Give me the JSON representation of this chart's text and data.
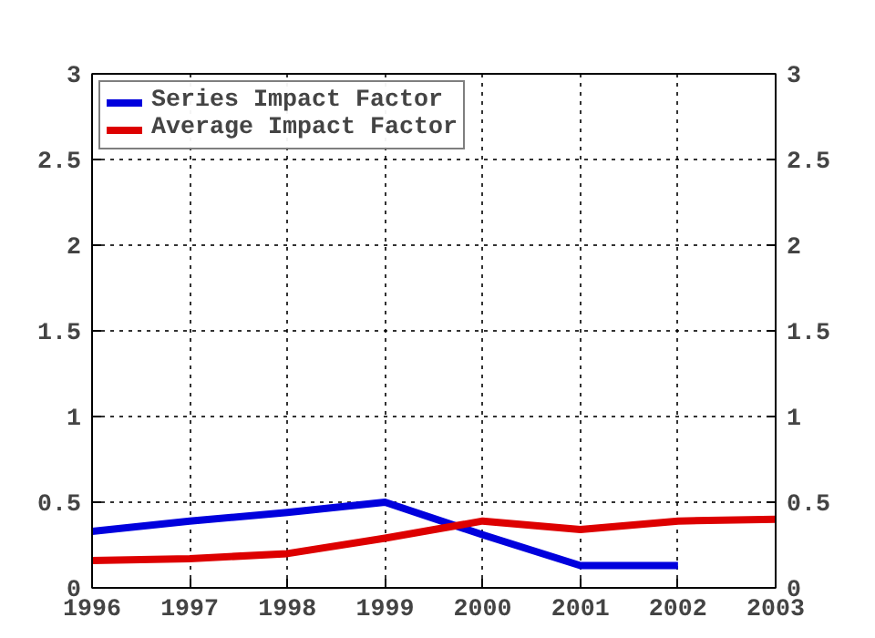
{
  "chart_data": {
    "type": "line",
    "x": [
      1996,
      1997,
      1998,
      1999,
      2000,
      2001,
      2002,
      2003
    ],
    "series": [
      {
        "name": "Series Impact Factor",
        "color": "#0000dd",
        "values": [
          0.33,
          0.39,
          0.44,
          0.5,
          0.31,
          0.13,
          0.13,
          null
        ]
      },
      {
        "name": "Average Impact Factor",
        "color": "#dd0000",
        "values": [
          0.16,
          0.17,
          0.2,
          0.29,
          0.39,
          0.34,
          0.39,
          0.4
        ]
      }
    ],
    "xlim": [
      1996,
      2003
    ],
    "xticks": [
      1996,
      1997,
      1998,
      1999,
      2000,
      2001,
      2002,
      2003
    ],
    "ylim": [
      0,
      3
    ],
    "yticks": [
      0,
      0.5,
      1,
      1.5,
      2,
      2.5,
      3
    ],
    "y2lim": [
      0,
      3
    ],
    "y2ticks": [
      0,
      0.5,
      1,
      1.5,
      2,
      2.5,
      3
    ],
    "grid": true,
    "legend": "top left",
    "marker": "none",
    "line_style": "solid"
  }
}
